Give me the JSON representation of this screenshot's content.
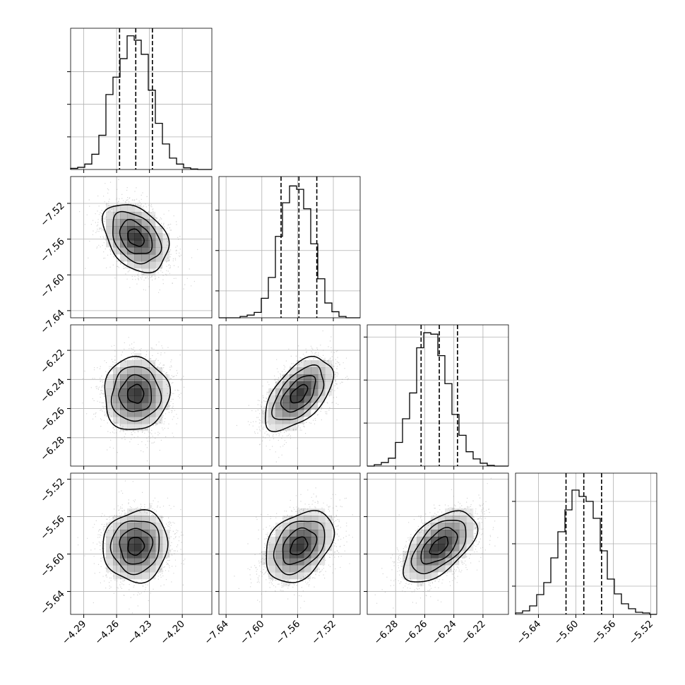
{
  "chart_data": {
    "type": "corner",
    "title": "",
    "grid": true,
    "parameters": [
      {
        "index": 0,
        "range": [
          -4.302,
          -4.173
        ],
        "ticks": [
          -4.29,
          -4.26,
          -4.23,
          -4.2
        ],
        "tick_labels": [
          "−4.29",
          "−4.26",
          "−4.23",
          "−4.20"
        ],
        "quantiles": [
          -4.2573,
          -4.2425,
          -4.2273
        ],
        "histogram": {
          "bin_start": -4.302,
          "bin_width": 0.00645,
          "counts": [
            2,
            4,
            10,
            28,
            63,
            138,
            170,
            204,
            246,
            238,
            212,
            146,
            85,
            47,
            21,
            10,
            3,
            1,
            0,
            0
          ],
          "ylim": [
            0,
            260
          ],
          "ytick_values": [
            60,
            120,
            180
          ]
        }
      },
      {
        "index": 1,
        "range": [
          -7.648,
          -7.49
        ],
        "ticks": [
          -7.64,
          -7.6,
          -7.56,
          -7.52
        ],
        "tick_labels": [
          "−7.64",
          "−7.60",
          "−7.56",
          "−7.52"
        ],
        "quantiles": [
          -7.5785,
          -7.5585,
          -7.5385
        ],
        "histogram": {
          "bin_start": -7.648,
          "bin_width": 0.0079,
          "counts": [
            0,
            0,
            0,
            2,
            4,
            8,
            29,
            60,
            121,
            171,
            196,
            191,
            162,
            110,
            58,
            22,
            9,
            2,
            0,
            0
          ],
          "ylim": [
            0,
            210
          ],
          "ytick_values": [
            40,
            100,
            160
          ]
        }
      },
      {
        "index": 2,
        "range": [
          -6.2995,
          -6.2025
        ],
        "ticks": [
          -6.28,
          -6.26,
          -6.24,
          -6.22
        ],
        "tick_labels": [
          "−6.28",
          "−6.26",
          "−6.24",
          "−6.22"
        ],
        "quantiles": [
          -6.2625,
          -6.25,
          -6.2375
        ],
        "histogram": {
          "bin_start": -6.2995,
          "bin_width": 0.00485,
          "counts": [
            0,
            2,
            5,
            11,
            33,
            66,
            102,
            165,
            186,
            184,
            154,
            115,
            72,
            43,
            20,
            10,
            4,
            1,
            0,
            0
          ],
          "ylim": [
            0,
            197
          ],
          "ytick_values": [
            60,
            120,
            180
          ]
        }
      },
      {
        "index": 3,
        "range": [
          -5.6645,
          -5.5135
        ],
        "ticks": [
          -5.64,
          -5.6,
          -5.56,
          -5.52
        ],
        "tick_labels": [
          "−5.64",
          "−5.60",
          "−5.56",
          "−5.52"
        ],
        "quantiles": [
          -5.6105,
          -5.5915,
          -5.5725
        ],
        "histogram": {
          "bin_start": -5.6645,
          "bin_width": 0.00755,
          "counts": [
            2,
            5,
            12,
            28,
            45,
            80,
            117,
            148,
            176,
            167,
            160,
            136,
            90,
            50,
            29,
            15,
            8,
            3,
            2,
            0
          ],
          "ylim": [
            0,
            200
          ],
          "ytick_values": [
            40,
            100,
            160
          ]
        }
      }
    ],
    "pairs": [
      {
        "x_param": 0,
        "y_param": 1,
        "mean": [
          -4.2425,
          -7.5585
        ],
        "sd": [
          0.0148,
          0.019
        ],
        "corr": -0.35
      },
      {
        "x_param": 0,
        "y_param": 2,
        "mean": [
          -4.2425,
          -6.25
        ],
        "sd": [
          0.0148,
          0.0125
        ],
        "corr": 0.02
      },
      {
        "x_param": 1,
        "y_param": 2,
        "mean": [
          -7.5585,
          -6.25
        ],
        "sd": [
          0.019,
          0.0125
        ],
        "corr": 0.55
      },
      {
        "x_param": 0,
        "y_param": 3,
        "mean": [
          -4.2425,
          -5.5915
        ],
        "sd": [
          0.0148,
          0.019
        ],
        "corr": 0.05
      },
      {
        "x_param": 1,
        "y_param": 3,
        "mean": [
          -7.5585,
          -5.5915
        ],
        "sd": [
          0.019,
          0.019
        ],
        "corr": 0.35
      },
      {
        "x_param": 2,
        "y_param": 3,
        "mean": [
          -6.25,
          -5.5915
        ],
        "sd": [
          0.0125,
          0.019
        ],
        "corr": 0.55
      }
    ],
    "contour_levels": [
      0.118,
      0.393,
      0.675,
      0.865
    ],
    "scatter_color": "#888888",
    "density_color": "#000000",
    "line_color": "#000000",
    "grid_color": "#b0b0b0"
  }
}
